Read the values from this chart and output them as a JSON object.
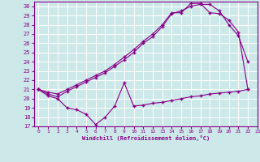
{
  "background_color": "#cce8e8",
  "grid_color": "#ffffff",
  "line_color": "#880088",
  "xlabel": "Windchill (Refroidissement éolien,°C)",
  "xlim": [
    -0.5,
    23
  ],
  "ylim": [
    17,
    30.5
  ],
  "xticks": [
    0,
    1,
    2,
    3,
    4,
    5,
    6,
    7,
    8,
    9,
    10,
    11,
    12,
    13,
    14,
    15,
    16,
    17,
    18,
    19,
    20,
    21,
    22,
    23
  ],
  "yticks": [
    17,
    18,
    19,
    20,
    21,
    22,
    23,
    24,
    25,
    26,
    27,
    28,
    29,
    30
  ],
  "series1_x": [
    0,
    1,
    2,
    3,
    4,
    5,
    6,
    7,
    8,
    9,
    10,
    11,
    12,
    13,
    14,
    15,
    16,
    17,
    18,
    19,
    20,
    21,
    22
  ],
  "series1_y": [
    21.0,
    20.3,
    20.0,
    19.0,
    18.8,
    18.3,
    17.2,
    18.0,
    19.2,
    21.7,
    19.2,
    19.3,
    19.5,
    19.6,
    19.8,
    20.0,
    20.2,
    20.3,
    20.5,
    20.6,
    20.7,
    20.8,
    21.0
  ],
  "series2_x": [
    0,
    1,
    2,
    3,
    4,
    5,
    6,
    7,
    8,
    9,
    10,
    11,
    12,
    13,
    14,
    15,
    16,
    17,
    18,
    19,
    20,
    21,
    22
  ],
  "series2_y": [
    21.0,
    20.5,
    20.2,
    20.8,
    21.3,
    21.8,
    22.3,
    22.8,
    23.5,
    24.2,
    25.0,
    26.0,
    26.7,
    27.8,
    29.2,
    29.5,
    30.0,
    30.2,
    30.2,
    29.5,
    28.0,
    26.8,
    24.0
  ],
  "series3_x": [
    0,
    1,
    2,
    3,
    4,
    5,
    6,
    7,
    8,
    9,
    10,
    11,
    12,
    13,
    14,
    15,
    16,
    17,
    18,
    19,
    20,
    21,
    22
  ],
  "series3_y": [
    21.0,
    20.7,
    20.5,
    21.0,
    21.5,
    22.0,
    22.5,
    23.0,
    23.7,
    24.5,
    25.3,
    26.2,
    27.0,
    28.0,
    29.3,
    29.3,
    30.3,
    30.3,
    29.3,
    29.2,
    28.5,
    27.2,
    21.0
  ]
}
